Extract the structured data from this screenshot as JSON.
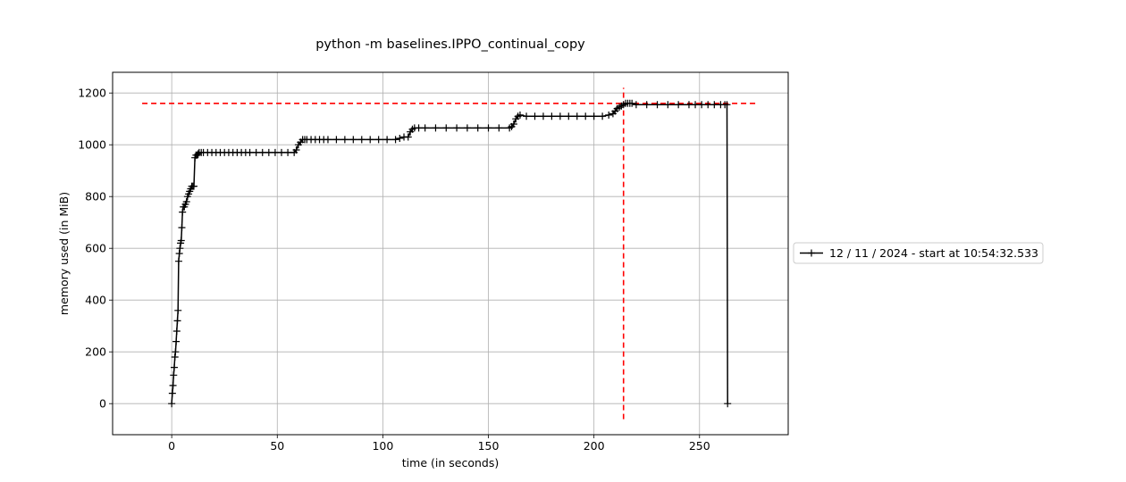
{
  "chart_data": {
    "type": "line",
    "title": "python -m baselines.IPPO_continual_copy",
    "xlabel": "time (in seconds)",
    "ylabel": "memory used (in MiB)",
    "xlim": [
      -28,
      292
    ],
    "ylim": [
      -120,
      1280
    ],
    "xticks": [
      0,
      50,
      100,
      150,
      200,
      250
    ],
    "yticks": [
      0,
      200,
      400,
      600,
      800,
      1000,
      1200
    ],
    "grid": true,
    "legend_position": "right, outside plot",
    "series": [
      {
        "name": "12 / 11 / 2024 - start at 10:54:32.533",
        "color": "#000000",
        "marker": "+",
        "x": [
          0,
          0.3,
          0.6,
          0.9,
          1.2,
          1.5,
          1.8,
          2.1,
          2.4,
          2.7,
          3.0,
          3.3,
          3.6,
          3.9,
          4.2,
          4.5,
          4.8,
          5.1,
          5.5,
          6,
          6.5,
          7,
          7.5,
          8,
          8.5,
          9,
          9.5,
          10,
          10.5,
          11,
          11.5,
          12,
          12.5,
          13,
          14,
          15,
          17,
          19,
          21,
          23,
          25,
          27,
          29,
          31,
          33,
          35,
          37,
          40,
          43,
          46,
          49,
          52,
          55,
          58,
          59,
          60,
          61,
          62,
          63,
          64,
          66,
          68,
          70,
          72,
          74,
          78,
          82,
          86,
          90,
          94,
          98,
          102,
          106,
          108,
          110,
          112,
          113,
          114,
          115,
          117,
          120,
          125,
          130,
          135,
          140,
          145,
          150,
          155,
          160,
          161,
          162,
          163,
          164,
          165,
          168,
          172,
          176,
          180,
          184,
          188,
          192,
          196,
          200,
          204,
          207,
          209,
          210,
          211,
          212,
          213,
          214,
          215,
          216,
          217,
          218,
          220,
          225,
          230,
          235,
          240,
          245,
          248,
          251,
          254,
          257,
          260,
          262,
          263,
          263.3
        ],
        "y": [
          0,
          40,
          70,
          110,
          140,
          180,
          200,
          240,
          280,
          320,
          360,
          550,
          580,
          600,
          620,
          630,
          680,
          740,
          760,
          760,
          770,
          780,
          800,
          810,
          820,
          830,
          840,
          840,
          840,
          950,
          960,
          960,
          965,
          970,
          970,
          970,
          970,
          970,
          970,
          970,
          970,
          970,
          970,
          970,
          970,
          970,
          970,
          970,
          970,
          970,
          970,
          970,
          970,
          970,
          980,
          1000,
          1010,
          1020,
          1020,
          1020,
          1020,
          1020,
          1020,
          1020,
          1020,
          1020,
          1020,
          1020,
          1020,
          1020,
          1020,
          1020,
          1020,
          1025,
          1030,
          1030,
          1050,
          1060,
          1065,
          1065,
          1065,
          1065,
          1065,
          1065,
          1065,
          1065,
          1065,
          1065,
          1065,
          1070,
          1080,
          1100,
          1110,
          1115,
          1110,
          1110,
          1110,
          1110,
          1110,
          1110,
          1110,
          1110,
          1110,
          1110,
          1115,
          1120,
          1130,
          1140,
          1145,
          1150,
          1155,
          1160,
          1160,
          1160,
          1160,
          1155,
          1155,
          1155,
          1155,
          1155,
          1155,
          1155,
          1155,
          1155,
          1155,
          1155,
          1155,
          1155,
          0
        ]
      }
    ],
    "reference_lines": [
      {
        "orientation": "horizontal",
        "value": 1160,
        "color": "#ff0000",
        "style": "dashed",
        "from": -14,
        "to": 277
      },
      {
        "orientation": "vertical",
        "value": 214,
        "color": "#ff0000",
        "style": "dashed",
        "from": -60,
        "to": 1220
      }
    ]
  }
}
